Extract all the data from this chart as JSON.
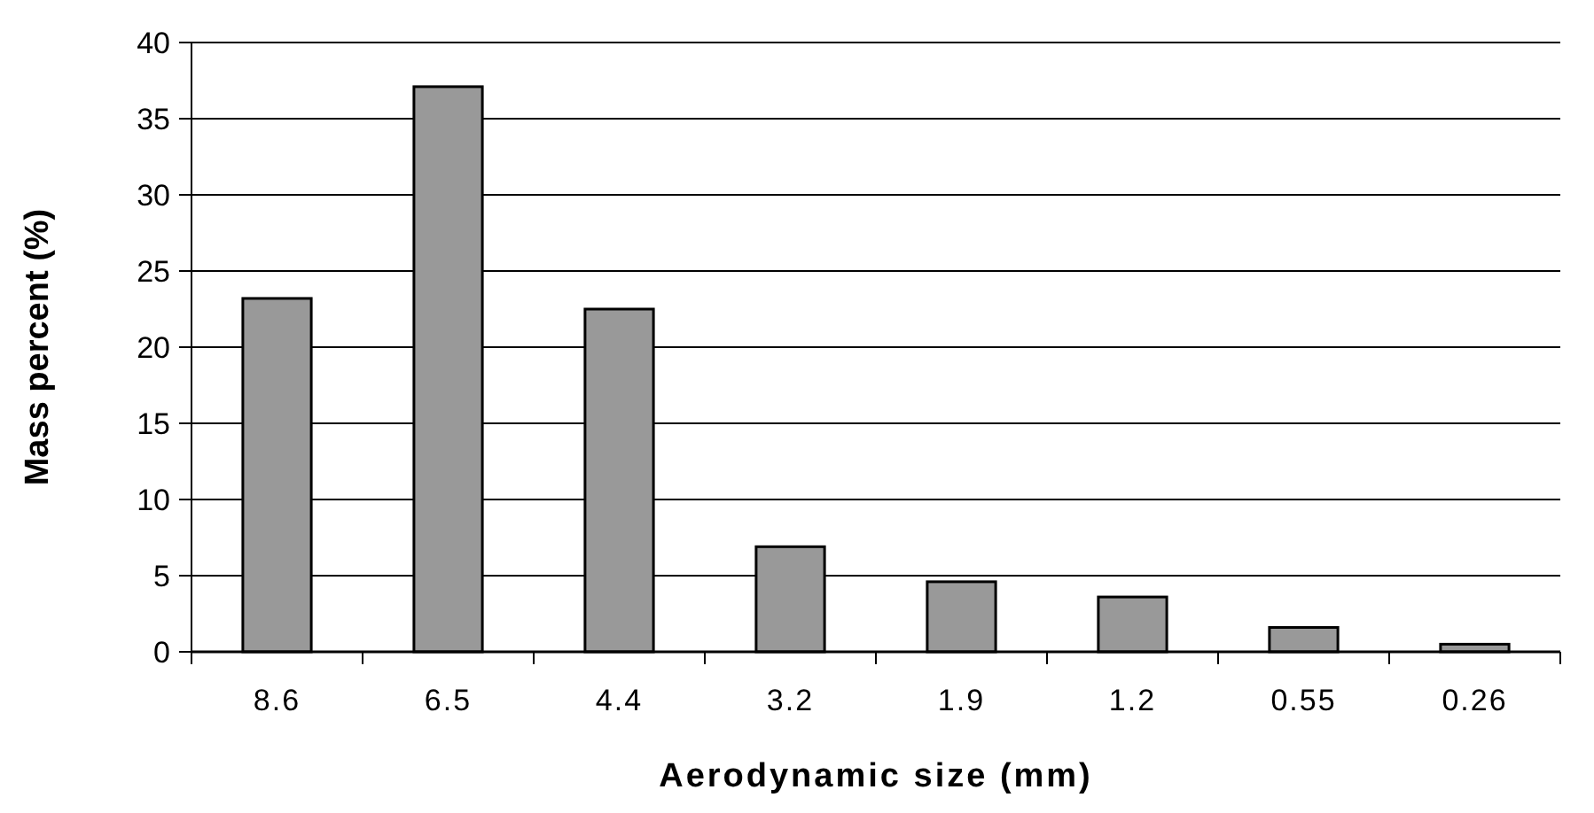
{
  "chart_data": {
    "type": "bar",
    "xlabel": "Aerodynamic size (mm)",
    "ylabel": "Mass percent (%)",
    "categories": [
      "8.6",
      "6.5",
      "4.4",
      "3.2",
      "1.9",
      "1.2",
      "0.55",
      "0.26"
    ],
    "values": [
      23.2,
      37.1,
      22.5,
      6.9,
      4.6,
      3.6,
      1.6,
      0.5
    ],
    "color": "#999999",
    "ylim": [
      0,
      40
    ],
    "yticks": [
      0,
      5,
      10,
      15,
      20,
      25,
      30,
      35,
      40
    ],
    "grid": "y"
  }
}
